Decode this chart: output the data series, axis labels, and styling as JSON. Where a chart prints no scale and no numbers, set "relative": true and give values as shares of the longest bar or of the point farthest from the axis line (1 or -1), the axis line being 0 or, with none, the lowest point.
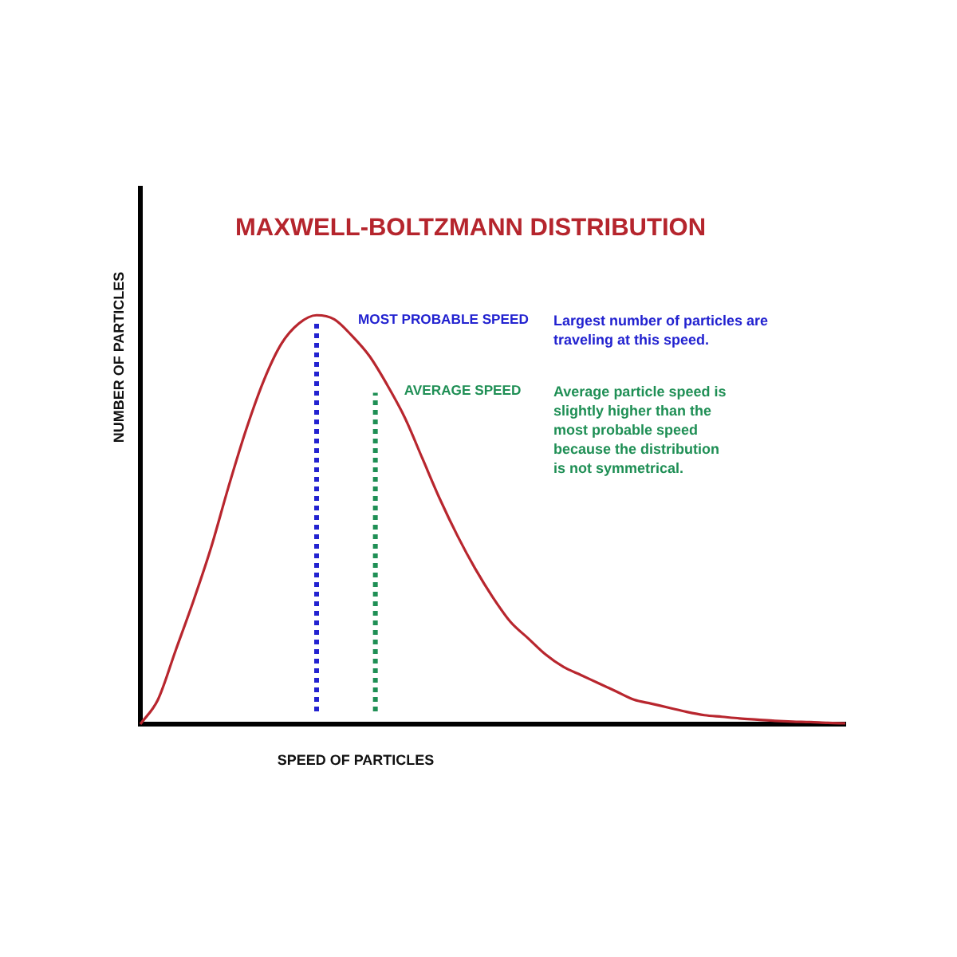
{
  "chart_data": {
    "type": "line",
    "title": "MAXWELL-BOLTZMANN DISTRIBUTION",
    "xlabel": "SPEED OF PARTICLES",
    "ylabel": "NUMBER OF PARTICLES",
    "relative": true,
    "categories": [
      null,
      null,
      null,
      null,
      null,
      null,
      null,
      null,
      null,
      null,
      null,
      null,
      null,
      null,
      null,
      null,
      null,
      null,
      null,
      null,
      null,
      null,
      null,
      null,
      null,
      null,
      null,
      null,
      null,
      null,
      null,
      null,
      null,
      null,
      null,
      null,
      null,
      null,
      null,
      null,
      null
    ],
    "series": [
      {
        "color": "#b8262e",
        "values": [
          0,
          0.06,
          0.18,
          0.3,
          0.43,
          0.58,
          0.72,
          0.84,
          0.93,
          0.98,
          1,
          0.99,
          0.95,
          0.9,
          0.83,
          0.75,
          0.65,
          0.55,
          0.46,
          0.38,
          0.31,
          0.25,
          0.21,
          0.17,
          0.14,
          0.12,
          0.1,
          0.08,
          0.06,
          0.05,
          0.04,
          0.03,
          0.022,
          0.018,
          0.014,
          0.011,
          0.008,
          0.006,
          0.005,
          0.003,
          0.002
        ]
      }
    ],
    "annotations": [
      "MOST PROBABLE SPEED",
      "AVERAGE SPEED",
      "Largest number of particles are traveling at this speed.",
      "Average particle speed is slightly higher than the most probable speed because the distribution is not symmetrical."
    ]
  }
}
